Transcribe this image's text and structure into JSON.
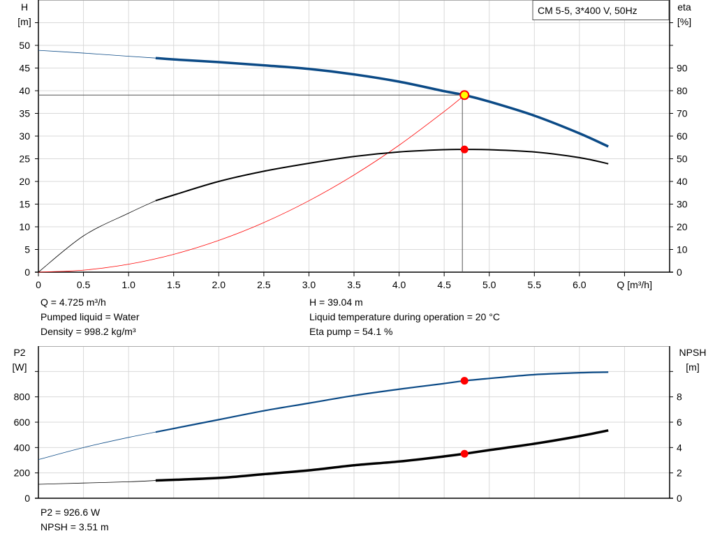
{
  "chart_data": [
    {
      "type": "line",
      "title": "CM 5-5, 3*400 V, 50Hz",
      "xlabel": "Q [m³/h]",
      "ylabel_left": [
        "H",
        "[m]"
      ],
      "ylabel_right": [
        "eta",
        "[%]"
      ],
      "xlim": [
        0,
        7.0
      ],
      "ylim_left": [
        0,
        60
      ],
      "ylim_right": [
        0,
        120
      ],
      "xticks": [
        "0",
        "0.5",
        "1.0",
        "1.5",
        "2.0",
        "2.5",
        "3.0",
        "3.5",
        "4.0",
        "4.5",
        "5.0",
        "5.5",
        "6.0"
      ],
      "yticks_left": [
        "0",
        "5",
        "10",
        "15",
        "20",
        "25",
        "30",
        "35",
        "40",
        "45",
        "50"
      ],
      "yticks_right": [
        "0",
        "10",
        "20",
        "30",
        "40",
        "50",
        "60",
        "70",
        "80",
        "90"
      ],
      "grid": true,
      "legend": "top-right",
      "series": [
        {
          "name": "H",
          "axis": "left",
          "color": "#0b4a86",
          "x": [
            0,
            0.5,
            1.0,
            1.3,
            1.5,
            2.0,
            2.5,
            3.0,
            3.5,
            4.0,
            4.5,
            4.725,
            5.0,
            5.5,
            6.0,
            6.32
          ],
          "y": [
            48.9,
            48.3,
            47.6,
            47.2,
            46.9,
            46.3,
            45.6,
            44.8,
            43.6,
            42.0,
            39.9,
            39.04,
            37.6,
            34.5,
            30.6,
            27.7
          ]
        },
        {
          "name": "eta",
          "axis": "right",
          "color": "#000000",
          "x": [
            0,
            0.5,
            1.0,
            1.3,
            1.5,
            2.0,
            2.5,
            3.0,
            3.5,
            4.0,
            4.5,
            4.725,
            5.0,
            5.5,
            6.0,
            6.32
          ],
          "y": [
            0,
            16,
            26,
            31.5,
            34,
            40,
            44.5,
            48,
            51,
            53,
            54,
            54.1,
            54,
            53,
            50.5,
            47.8
          ]
        },
        {
          "name": "system",
          "axis": "left",
          "color": "#ff0000",
          "x": [
            0,
            0.5,
            1.0,
            1.5,
            2.0,
            2.5,
            3.0,
            3.5,
            4.0,
            4.5,
            4.725
          ],
          "y": [
            0,
            0.44,
            1.75,
            3.93,
            7.0,
            10.93,
            15.74,
            21.42,
            27.98,
            35.41,
            39.04
          ]
        }
      ],
      "duty_point": {
        "q": 4.725,
        "h": 39.04,
        "eta": 54.1
      },
      "thin_below_q": 1.3
    },
    {
      "type": "line",
      "xlim": [
        0,
        7.0
      ],
      "ylabel_left": [
        "P2",
        "[W]"
      ],
      "ylabel_right": [
        "NPSH",
        "[m]"
      ],
      "ylim_left": [
        0,
        1200
      ],
      "ylim_right": [
        0,
        12
      ],
      "yticks_left": [
        "0",
        "200",
        "400",
        "600",
        "800"
      ],
      "yticks_right": [
        "0",
        "2",
        "4",
        "6",
        "8"
      ],
      "grid": true,
      "series": [
        {
          "name": "P2",
          "axis": "left",
          "color": "#0b4a86",
          "x": [
            0,
            0.5,
            1.0,
            1.3,
            2.0,
            2.5,
            3.0,
            3.5,
            4.0,
            4.5,
            4.725,
            5.0,
            5.5,
            6.0,
            6.32
          ],
          "y": [
            305,
            400,
            480,
            522,
            620,
            690,
            750,
            810,
            860,
            905,
            926.6,
            945,
            975,
            990,
            995
          ]
        },
        {
          "name": "NPSH",
          "axis": "right",
          "color": "#000000",
          "x": [
            0,
            0.5,
            1.0,
            1.3,
            2.0,
            2.5,
            3.0,
            3.5,
            4.0,
            4.5,
            4.725,
            5.0,
            5.5,
            6.0,
            6.32
          ],
          "y": [
            1.1,
            1.2,
            1.3,
            1.4,
            1.6,
            1.9,
            2.2,
            2.6,
            2.9,
            3.3,
            3.51,
            3.8,
            4.3,
            4.9,
            5.35
          ]
        }
      ],
      "duty_point": {
        "q": 4.725,
        "p2": 926.6,
        "npsh": 3.51
      }
    }
  ],
  "info_top": {
    "q": "Q = 4.725 m³/h",
    "liquid": "Pumped liquid = Water",
    "density": "Density = 998.2 kg/m³",
    "h": "H = 39.04 m",
    "temp": "Liquid temperature during operation = 20 °C",
    "eta": "Eta pump = 54.1 %"
  },
  "info_bottom": {
    "p2": "P2 = 926.6 W",
    "npsh": "NPSH = 3.51 m"
  },
  "colors": {
    "grid": "#d9d9d9",
    "duty_marker": "#ff0000",
    "duty_fill": "#ffff00"
  }
}
